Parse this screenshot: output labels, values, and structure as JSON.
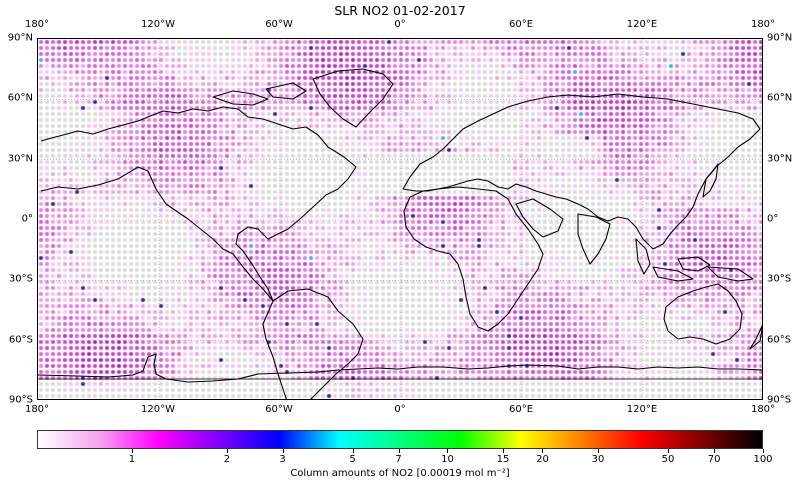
{
  "title": "SLR NO2 01-02-2017",
  "map": {
    "projection": "equirectangular",
    "lon_ticks_top": [
      {
        "label": "180°",
        "lon": -180
      },
      {
        "label": "120°W",
        "lon": -120
      },
      {
        "label": "60°W",
        "lon": -60
      },
      {
        "label": "0°",
        "lon": 0
      },
      {
        "label": "60°E",
        "lon": 60
      },
      {
        "label": "120°E",
        "lon": 120
      },
      {
        "label": "180°",
        "lon": 180
      }
    ],
    "lon_ticks_bottom": [
      {
        "label": "180°",
        "lon": -180
      },
      {
        "label": "120°W",
        "lon": -120
      },
      {
        "label": "60°W",
        "lon": -60
      },
      {
        "label": "0°",
        "lon": 0
      },
      {
        "label": "60°E",
        "lon": 60
      },
      {
        "label": "120°E",
        "lon": 120
      },
      {
        "label": "180°",
        "lon": 180
      }
    ],
    "lat_ticks_left": [
      {
        "label": "90°N",
        "lat": 90
      },
      {
        "label": "60°N",
        "lat": 60
      },
      {
        "label": "30°N",
        "lat": 30
      },
      {
        "label": "0°",
        "lat": 0
      },
      {
        "label": "30°S",
        "lat": -30
      },
      {
        "label": "60°S",
        "lat": -60
      },
      {
        "label": "90°S",
        "lat": -90
      }
    ],
    "lat_ticks_right": [
      {
        "label": "90°N",
        "lat": 90
      },
      {
        "label": "60°N",
        "lat": 60
      },
      {
        "label": "30°N",
        "lat": 30
      },
      {
        "label": "0°",
        "lat": 0
      },
      {
        "label": "30°S",
        "lat": -30
      },
      {
        "label": "60°S",
        "lat": -60
      },
      {
        "label": "90°S",
        "lat": -90
      }
    ],
    "no_data_color": "#d9d9d9"
  },
  "colorbar": {
    "label": "Column amounts of NO2 [0.00019 mol m⁻²]",
    "scale": "log",
    "min": 0.5,
    "max": 100,
    "ticks": [
      {
        "label": "1",
        "value": 1
      },
      {
        "label": "2",
        "value": 2
      },
      {
        "label": "3",
        "value": 3
      },
      {
        "label": "5",
        "value": 5
      },
      {
        "label": "7",
        "value": 7
      },
      {
        "label": "10",
        "value": 10
      },
      {
        "label": "15",
        "value": 15
      },
      {
        "label": "20",
        "value": 20
      },
      {
        "label": "30",
        "value": 30
      },
      {
        "label": "50",
        "value": 50
      },
      {
        "label": "70",
        "value": 70
      },
      {
        "label": "100",
        "value": 100
      }
    ],
    "colors": [
      "#ffffff",
      "#f5a6ef",
      "#ff00ff",
      "#8000ff",
      "#0000ff",
      "#00ffff",
      "#00ff80",
      "#00ff00",
      "#ffff00",
      "#ff8000",
      "#ff0000",
      "#800000",
      "#000000"
    ]
  }
}
